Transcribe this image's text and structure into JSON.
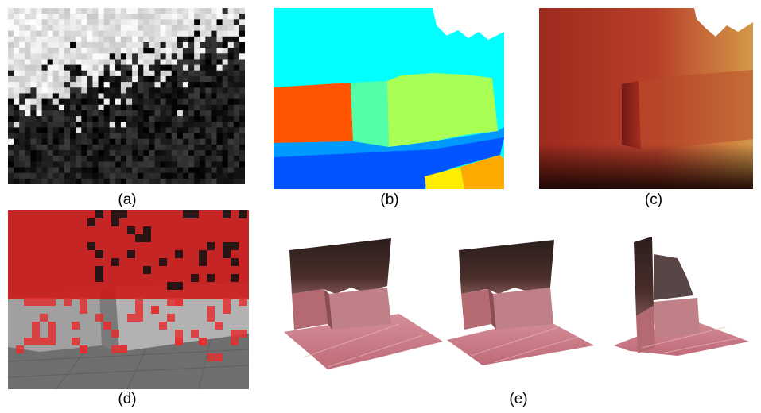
{
  "figure": {
    "captions": {
      "a": "(a)",
      "b": "(b)",
      "c": "(c)",
      "d": "(d)",
      "e": "(e)"
    },
    "colors": {
      "segment_cyan": "#00ffff",
      "segment_orange": "#ff5500",
      "segment_mint": "#55ffaa",
      "segment_lime": "#aaff55",
      "segment_sky": "#0099ff",
      "segment_blue": "#0055ff",
      "segment_yellow": "#ffee00",
      "segment_amber": "#ffaa00",
      "overlay_red": "#cc1a1a",
      "pavement_pink": "#c97a86"
    }
  }
}
